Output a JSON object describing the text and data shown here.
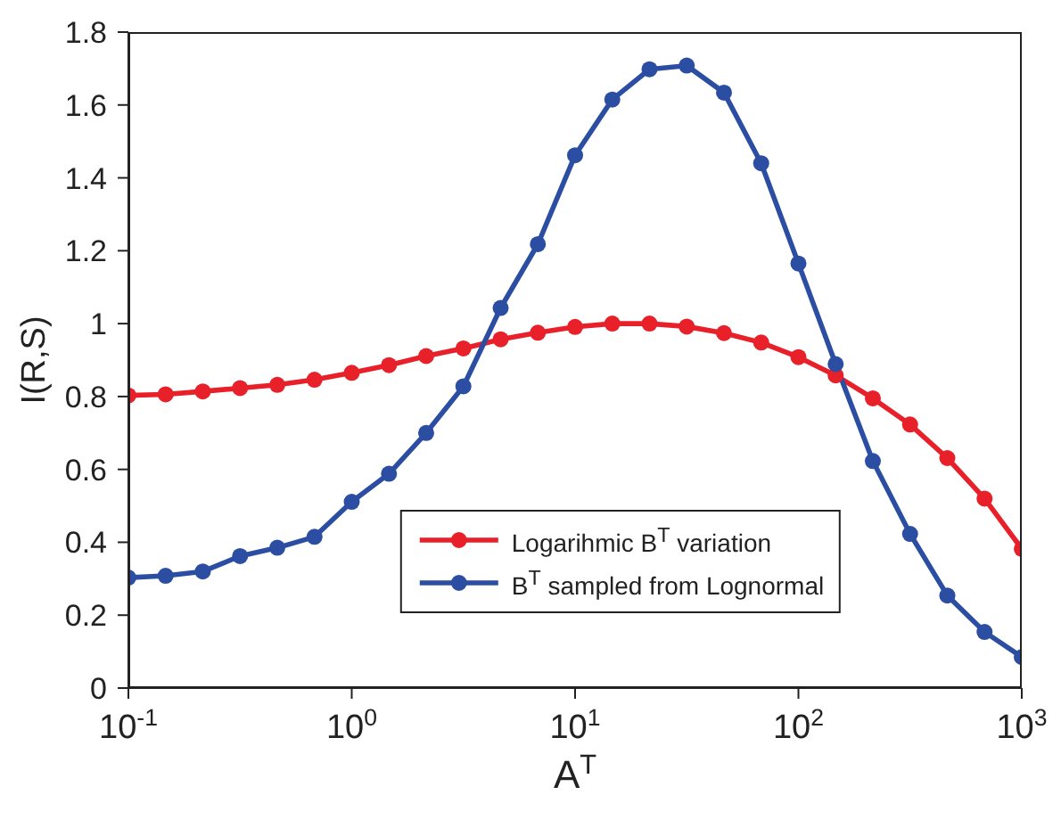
{
  "chart_data": {
    "type": "line",
    "xlabel": "A$^{T}$",
    "ylabel": "I(R,S)",
    "x": [
      0.1,
      0.1468,
      0.2154,
      0.3162,
      0.4642,
      0.6813,
      1,
      1.468,
      2.154,
      3.162,
      4.642,
      6.813,
      10,
      14.68,
      21.54,
      31.62,
      46.42,
      68.13,
      100,
      146.8,
      215.4,
      316.2,
      464.2,
      681.3,
      1000
    ],
    "series": [
      {
        "name": "Logarihmic B$^{T}$ variation",
        "color": "#e8202a",
        "values": [
          0.803,
          0.806,
          0.814,
          0.823,
          0.832,
          0.846,
          0.865,
          0.886,
          0.911,
          0.932,
          0.957,
          0.975,
          0.991,
          1.0,
          1.0,
          0.992,
          0.974,
          0.948,
          0.908,
          0.858,
          0.795,
          0.723,
          0.631,
          0.52,
          0.382
        ]
      },
      {
        "name": "B$^{T}$ sampled from Lognormal",
        "color": "#2b4ea2",
        "values": [
          0.303,
          0.308,
          0.32,
          0.362,
          0.385,
          0.415,
          0.511,
          0.588,
          0.7,
          0.828,
          1.043,
          1.218,
          1.462,
          1.615,
          1.698,
          1.708,
          1.634,
          1.44,
          1.165,
          0.889,
          0.623,
          0.423,
          0.254,
          0.154,
          0.085
        ]
      }
    ],
    "log": "x",
    "xlim": [
      0.1,
      1000
    ],
    "xticks": [
      {
        "value": 0.1,
        "label": "10$^{-1}$"
      },
      {
        "value": 1,
        "label": "10$^{0}$"
      },
      {
        "value": 10,
        "label": "10$^{1}$"
      },
      {
        "value": 100,
        "label": "10$^{2}$"
      },
      {
        "value": 1000,
        "label": "10$^{3}$"
      }
    ],
    "ylim": [
      0,
      1.8
    ],
    "yticks": [
      0,
      0.2,
      0.4,
      0.6,
      0.8,
      1,
      1.2,
      1.4,
      1.6,
      1.8
    ],
    "legend": "bottom",
    "marker": "circle",
    "line_style": "solid"
  }
}
